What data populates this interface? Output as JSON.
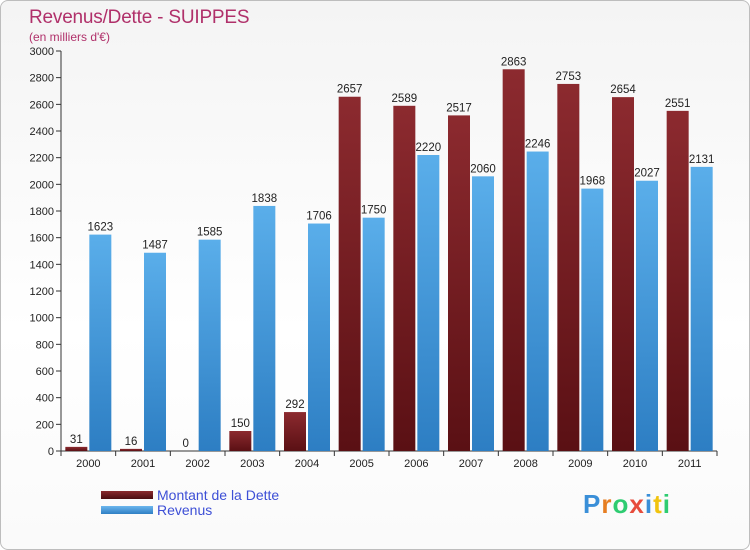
{
  "header": {
    "title": "Revenus/Dette - SUIPPES",
    "subtitle": "(en milliers d'€)"
  },
  "chart_data": {
    "type": "bar",
    "categories": [
      "2000",
      "2001",
      "2002",
      "2003",
      "2004",
      "2005",
      "2006",
      "2007",
      "2008",
      "2009",
      "2010",
      "2011"
    ],
    "series": [
      {
        "name": "Montant de la Dette",
        "color": "#7a1e22",
        "values": [
          31,
          16,
          0,
          150,
          292,
          2657,
          2589,
          2517,
          2863,
          2753,
          2654,
          2551
        ]
      },
      {
        "name": "Revenus",
        "color": "#4fa3e6",
        "values": [
          1623,
          1487,
          1585,
          1838,
          1706,
          1750,
          2220,
          2060,
          2246,
          1968,
          2027,
          2131
        ]
      }
    ],
    "yticks": [
      "0",
      "200",
      "400",
      "600",
      "800",
      "1000",
      "1200",
      "1400",
      "1600",
      "1800",
      "2000",
      "2200",
      "2400",
      "2600",
      "2800",
      "3000"
    ],
    "ylim": [
      0,
      3000
    ],
    "grid": false,
    "legend_position": "bottom-left"
  },
  "brand": {
    "letters": [
      "P",
      "r",
      "o",
      "x",
      "i",
      "t",
      "i"
    ],
    "colors": [
      "#3a8fd8",
      "#e67e22",
      "#2ecc71",
      "#e74c3c",
      "#3a8fd8",
      "#f1c40f",
      "#2ecc71"
    ]
  }
}
